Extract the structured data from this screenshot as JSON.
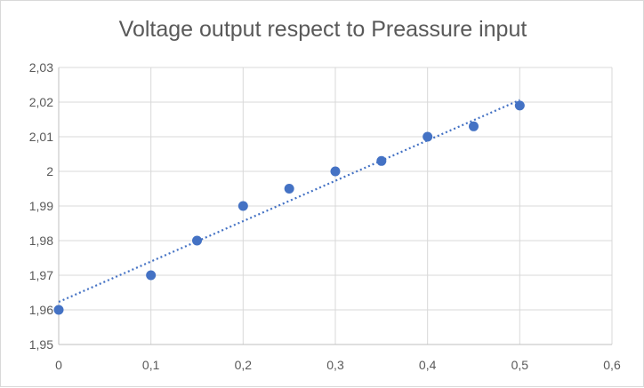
{
  "chart_data": {
    "type": "scatter",
    "title": "Voltage output respect to Preassure input",
    "xlabel": "",
    "ylabel": "",
    "xlim": [
      0,
      0.6
    ],
    "ylim": [
      1.95,
      2.03
    ],
    "x_ticks": [
      0,
      0.1,
      0.2,
      0.3,
      0.4,
      0.5,
      0.6
    ],
    "x_tick_labels": [
      "0",
      "0,1",
      "0,2",
      "0,3",
      "0,4",
      "0,5",
      "0,6"
    ],
    "y_ticks": [
      1.95,
      1.96,
      1.97,
      1.98,
      1.99,
      2.0,
      2.01,
      2.02,
      2.03
    ],
    "y_tick_labels": [
      "1,95",
      "1,96",
      "1,97",
      "1,98",
      "1,99",
      "2",
      "2,01",
      "2,02",
      "2,03"
    ],
    "grid": true,
    "series": [
      {
        "x": [
          0,
          0.1,
          0.15,
          0.2,
          0.25,
          0.3,
          0.35,
          0.4,
          0.45,
          0.5
        ],
        "y": [
          1.96,
          1.97,
          1.98,
          1.99,
          1.995,
          2.0,
          2.003,
          2.01,
          2.013,
          2.019
        ],
        "color": "#4472c4"
      }
    ],
    "trendline": {
      "type": "linear",
      "style": "dotted",
      "color": "#4472c4",
      "x": [
        0,
        0.5
      ],
      "y": [
        1.9623,
        2.0206
      ]
    },
    "colors": {
      "points": "#4472c4",
      "grid": "#d9d9d9",
      "text": "#595959"
    }
  }
}
